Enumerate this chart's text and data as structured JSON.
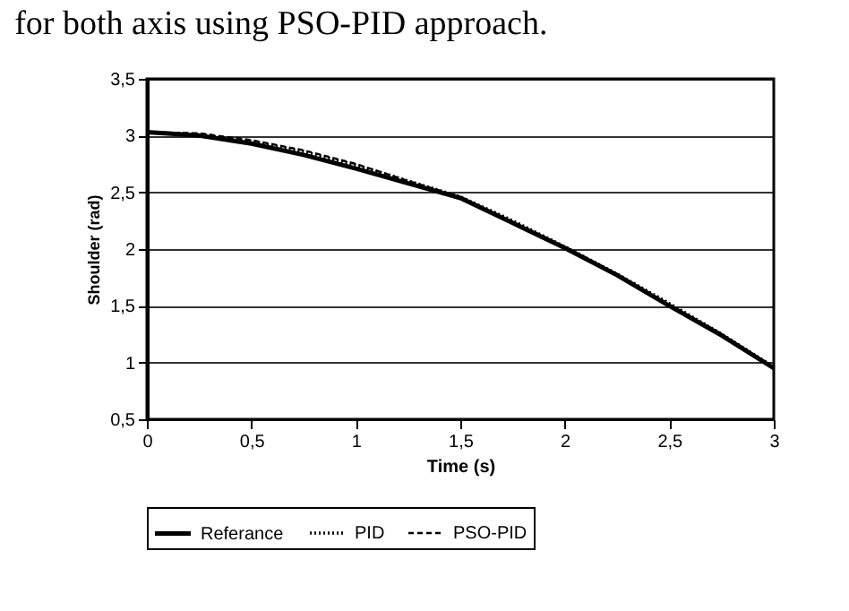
{
  "chart_data": {
    "type": "line",
    "xlabel": "Time (s)",
    "ylabel": "Shoulder (rad)",
    "annotations": [
      "for both axis using PSO-PID approach."
    ],
    "x": [
      0,
      0.25,
      0.5,
      0.75,
      1,
      1.25,
      1.5,
      1.75,
      2,
      2.25,
      2.5,
      2.75,
      3
    ],
    "series": [
      {
        "name": "Referance",
        "color": "#000000",
        "line_style": "solid",
        "values": [
          3.03,
          3.0,
          2.93,
          2.83,
          2.71,
          2.58,
          2.45,
          2.23,
          2.01,
          1.77,
          1.5,
          1.24,
          0.95
        ]
      },
      {
        "name": "PID",
        "color": "#000000",
        "line_style": "dotted",
        "values": [
          3.03,
          3.01,
          2.95,
          2.86,
          2.74,
          2.6,
          2.46,
          2.25,
          2.02,
          1.78,
          1.52,
          1.25,
          0.96
        ]
      },
      {
        "name": "PSO-PID",
        "color": "#000000",
        "line_style": "dashed",
        "values": [
          3.03,
          3.02,
          2.96,
          2.87,
          2.75,
          2.6,
          2.46,
          2.24,
          2.02,
          1.78,
          1.51,
          1.25,
          0.96
        ]
      }
    ],
    "xlim": [
      0,
      3
    ],
    "xticks": [
      0,
      {
        "value": 0.5,
        "label": "0,5"
      },
      1,
      {
        "value": 1.5,
        "label": "1,5"
      },
      2,
      {
        "value": 2.5,
        "label": "2,5"
      },
      3
    ],
    "ylim": [
      0.5,
      3.5
    ],
    "yticks": [
      {
        "value": 0.5,
        "label": "0,5"
      },
      1,
      {
        "value": 1.5,
        "label": "1,5"
      },
      2,
      {
        "value": 2.5,
        "label": "2,5"
      },
      3,
      {
        "value": 3.5,
        "label": "3,5"
      }
    ],
    "grid": "y",
    "legend": "bottom",
    "marker": "none"
  }
}
